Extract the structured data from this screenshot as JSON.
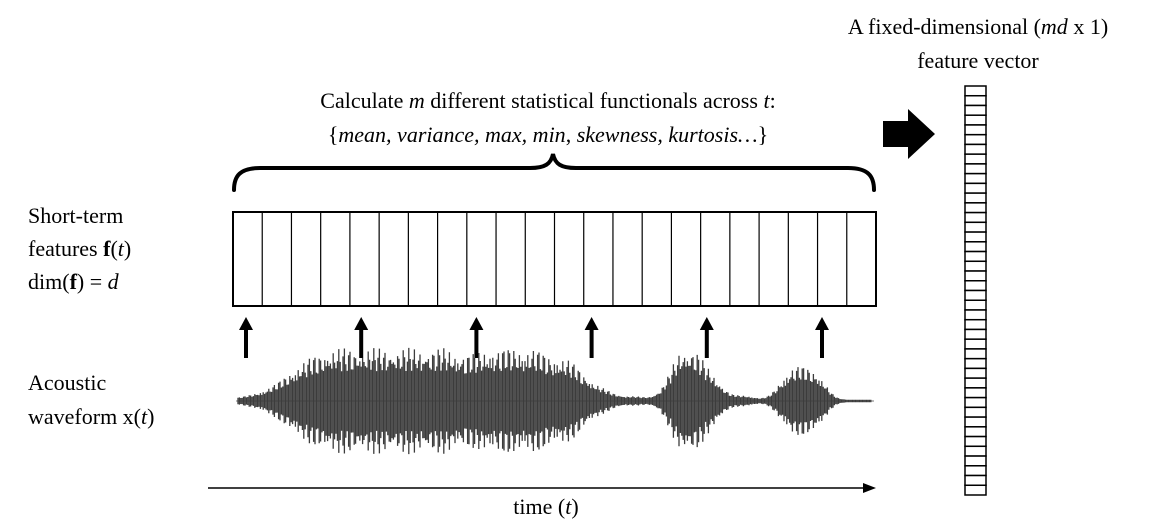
{
  "calc": {
    "line1": [
      "Calculate ",
      "m",
      " different statistical functionals across ",
      "t",
      ":"
    ],
    "line2": [
      "{",
      "mean, variance, max, min",
      ", ",
      "skewness, kurtosis…",
      "}"
    ]
  },
  "vector": {
    "line1": [
      "A fixed-dimensional (",
      "md",
      " x 1)"
    ],
    "line2": "feature vector",
    "cell_count": 42
  },
  "short_term": {
    "line1": "Short-term",
    "line2": [
      "features ",
      "f",
      "(",
      "t",
      ")"
    ],
    "line3": [
      "dim(",
      "f",
      ") = ",
      "d"
    ],
    "frame_count": 22,
    "arrow_count": 6
  },
  "acoustic": {
    "line1": "Acoustic",
    "line2": [
      "waveform x(",
      "t",
      ")"
    ]
  },
  "time_axis": {
    "label": [
      "time (",
      "t",
      ")"
    ]
  },
  "colors": {
    "ink": "#000000",
    "waveform": "#3c3c3c"
  }
}
